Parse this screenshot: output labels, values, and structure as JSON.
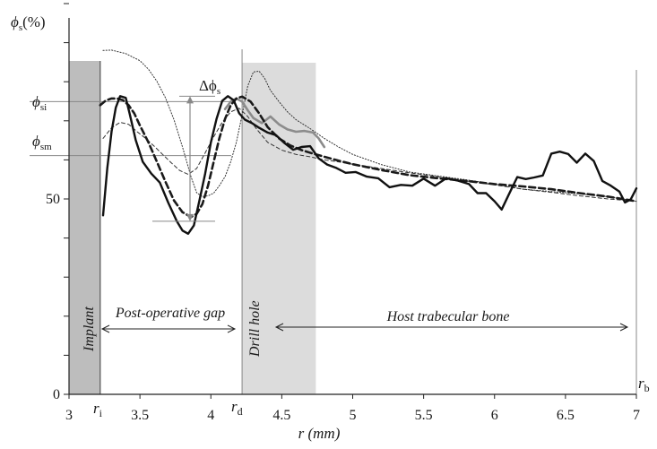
{
  "chart_data": {
    "type": "line",
    "title": "",
    "xlabel": "r (mm)",
    "ylabel_symbol": "ϕ",
    "ylabel_sub": "s",
    "ylabel_unit": "(%)",
    "xlim": [
      3,
      7
    ],
    "x_ticks": [
      3,
      3.5,
      4,
      4.5,
      5,
      5.5,
      6,
      6.5,
      7
    ],
    "x_tick_labels": [
      "3",
      "3.5",
      "4",
      "4.5",
      "5",
      "5.5",
      "6",
      "6.5",
      "7"
    ],
    "y_ticks": [
      0,
      50
    ],
    "y_tick_labels": [
      "0",
      "50"
    ],
    "grid": false,
    "regions": [
      {
        "name": "Implant",
        "x_start": 3.0,
        "x_end": 3.22,
        "color": "#bdbdbd"
      },
      {
        "name": "Drill hole",
        "x_start": 4.22,
        "x_end": 4.74,
        "color": "#dcdcdc"
      }
    ],
    "markers": {
      "r_i": {
        "symbol": "r",
        "sub": "i",
        "x": 3.22
      },
      "r_d": {
        "symbol": "r",
        "sub": "d",
        "x": 4.22
      },
      "r_b": {
        "symbol": "r",
        "sub": "b",
        "x": 7.0
      }
    },
    "annotations": {
      "gap_label": "Post-operative gap",
      "bone_label": "Host trabecular bone",
      "delta_symbol": "Δϕ",
      "delta_sub": "s",
      "phi_si_symbol": "ϕ",
      "phi_si_sub": "si",
      "phi_sm_symbol": "ϕ",
      "phi_sm_sub": "sm"
    },
    "reference_levels": {
      "phi_si": 74.9,
      "phi_sm": 61.1
    },
    "series": [
      {
        "style": "solid-black-thick",
        "x": [
          3.24,
          3.27,
          3.3,
          3.33,
          3.36,
          3.4,
          3.43,
          3.47,
          3.52,
          3.58,
          3.64,
          3.7,
          3.76,
          3.8,
          3.84,
          3.88,
          3.92,
          3.96,
          4.0,
          4.04,
          4.08,
          4.12,
          4.16,
          4.2,
          4.24,
          4.29,
          4.34,
          4.4,
          4.46,
          4.52,
          4.58,
          4.64,
          4.7,
          4.76,
          4.82,
          4.88,
          4.95,
          5.02,
          5.1,
          5.18,
          5.26,
          5.34,
          5.42,
          5.5,
          5.58,
          5.66,
          5.74,
          5.82,
          5.88,
          5.94,
          6.0,
          6.05,
          6.1,
          6.16,
          6.22,
          6.28,
          6.34,
          6.4,
          6.46,
          6.52,
          6.58,
          6.64,
          6.7,
          6.76,
          6.82,
          6.88,
          6.92,
          6.96,
          7.0
        ],
        "y": [
          45.8,
          57.9,
          67.3,
          73.4,
          76.3,
          75.9,
          71.5,
          65.1,
          59.5,
          56.5,
          54.2,
          49.0,
          44.3,
          41.9,
          41.1,
          43.2,
          49.7,
          56.5,
          64.5,
          70.5,
          75.1,
          76.3,
          75.3,
          71.9,
          70.3,
          69.4,
          68.2,
          67.0,
          66.3,
          64.3,
          62.6,
          63.3,
          63.5,
          60.4,
          58.8,
          58.0,
          56.7,
          56.9,
          55.7,
          55.3,
          53.0,
          53.6,
          53.4,
          55.2,
          53.4,
          55.3,
          54.7,
          53.8,
          51.5,
          51.5,
          49.4,
          47.3,
          51.1,
          55.6,
          55.1,
          55.5,
          56.0,
          61.6,
          62.1,
          61.5,
          59.3,
          61.6,
          59.7,
          54.6,
          53.4,
          51.9,
          49.1,
          49.9,
          52.7
        ]
      },
      {
        "style": "dashed-black-thick",
        "x": [
          3.22,
          3.26,
          3.3,
          3.34,
          3.38,
          3.42,
          3.46,
          3.5,
          3.56,
          3.62,
          3.68,
          3.74,
          3.8,
          3.86,
          3.9,
          3.94,
          3.98,
          4.02,
          4.06,
          4.1,
          4.14,
          4.18,
          4.22,
          4.28,
          4.34,
          4.4,
          4.48,
          4.56,
          4.64,
          4.72,
          4.8,
          4.9,
          5.0,
          5.2,
          5.4,
          5.6,
          5.8,
          6.0,
          6.2,
          6.4,
          6.6,
          6.8,
          7.0
        ],
        "y": [
          74.0,
          75.2,
          75.7,
          75.7,
          75.3,
          74.0,
          71.9,
          68.8,
          64.5,
          59.5,
          54.4,
          49.6,
          46.6,
          45.4,
          46.2,
          48.7,
          53.4,
          59.5,
          65.5,
          70.5,
          74.0,
          75.7,
          76.2,
          74.9,
          71.9,
          68.4,
          65.5,
          63.7,
          62.5,
          61.6,
          60.8,
          59.8,
          58.9,
          57.4,
          56.1,
          55.3,
          54.6,
          53.8,
          53.2,
          52.5,
          51.5,
          50.6,
          49.4
        ]
      },
      {
        "style": "solid-gray",
        "x": [
          4.1,
          4.14,
          4.18,
          4.22,
          4.26,
          4.3,
          4.36,
          4.42,
          4.48,
          4.54,
          4.6,
          4.66,
          4.72,
          4.76,
          4.8
        ],
        "y": [
          73.0,
          74.9,
          75.7,
          74.9,
          72.7,
          70.7,
          69.4,
          71.1,
          69.1,
          67.8,
          67.2,
          67.4,
          67.0,
          65.5,
          63.3
        ]
      },
      {
        "style": "dotted-thin",
        "x": [
          3.24,
          3.3,
          3.4,
          3.5,
          3.56,
          3.62,
          3.68,
          3.74,
          3.8,
          3.86,
          3.9,
          3.94,
          3.98,
          4.02,
          4.06,
          4.1,
          4.14,
          4.18,
          4.22,
          4.26,
          4.3,
          4.34,
          4.38,
          4.42,
          4.48,
          4.54,
          4.6,
          4.7,
          4.8,
          4.9,
          5.0,
          5.2,
          5.4,
          5.6,
          5.8,
          6.0,
          6.2,
          6.4,
          6.6,
          6.8,
          7.0
        ],
        "y": [
          88.0,
          88.1,
          87.2,
          85.4,
          83.2,
          80.1,
          75.9,
          70.3,
          63.3,
          55.7,
          51.6,
          50.6,
          50.8,
          51.5,
          53.4,
          55.7,
          59.5,
          64.5,
          71.5,
          78.9,
          82.5,
          82.7,
          80.8,
          77.8,
          74.9,
          72.3,
          70.3,
          68.0,
          65.5,
          63.3,
          61.4,
          58.8,
          56.9,
          55.9,
          54.9,
          53.8,
          52.5,
          51.9,
          51.3,
          50.6,
          49.4
        ]
      },
      {
        "style": "dashed-thin",
        "x": [
          3.24,
          3.3,
          3.36,
          3.42,
          3.48,
          3.54,
          3.6,
          3.66,
          3.72,
          3.78,
          3.84,
          3.9,
          3.96,
          4.02,
          4.08,
          4.14,
          4.2,
          4.26,
          4.32,
          4.4,
          4.5,
          4.6,
          4.7,
          4.8,
          4.9,
          5.0,
          5.2,
          5.4,
          5.6,
          5.8,
          6.0,
          6.2,
          6.4,
          6.6,
          6.8,
          7.0
        ],
        "y": [
          65.5,
          68.2,
          69.6,
          69.1,
          67.2,
          65.5,
          63.5,
          61.4,
          59.3,
          57.3,
          56.3,
          57.8,
          61.8,
          65.9,
          69.6,
          72.3,
          73.2,
          71.1,
          68.0,
          64.5,
          62.5,
          61.4,
          60.8,
          60.0,
          59.5,
          58.9,
          57.8,
          56.7,
          55.7,
          54.6,
          53.6,
          52.5,
          51.7,
          50.8,
          50.0,
          49.4
        ]
      }
    ]
  }
}
